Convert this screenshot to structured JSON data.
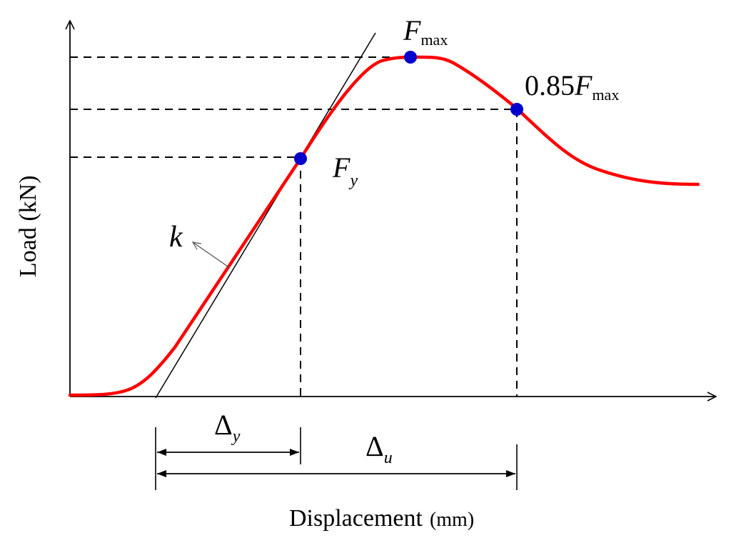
{
  "labels": {
    "y_axis": "Load (kN)",
    "x_axis_main": "Displacement",
    "x_axis_unit": "(mm)",
    "fmax_base": "F",
    "fmax_sub": "max",
    "f085_coef": "0.85",
    "f085_base": "F",
    "f085_sub": "max",
    "fy_base": "F",
    "fy_sub": "y",
    "k": "k",
    "delta_y_base": "Δ",
    "delta_y_sub": "y",
    "delta_u_base": "Δ",
    "delta_u_sub": "u"
  },
  "colors": {
    "curve": "#ff0000",
    "points": "#0000cc",
    "axes": "#000000"
  },
  "icons": {
    "k_pointer": "arrow-pointer-icon",
    "dimension_arrows": "double-headed-arrow-icon"
  }
}
